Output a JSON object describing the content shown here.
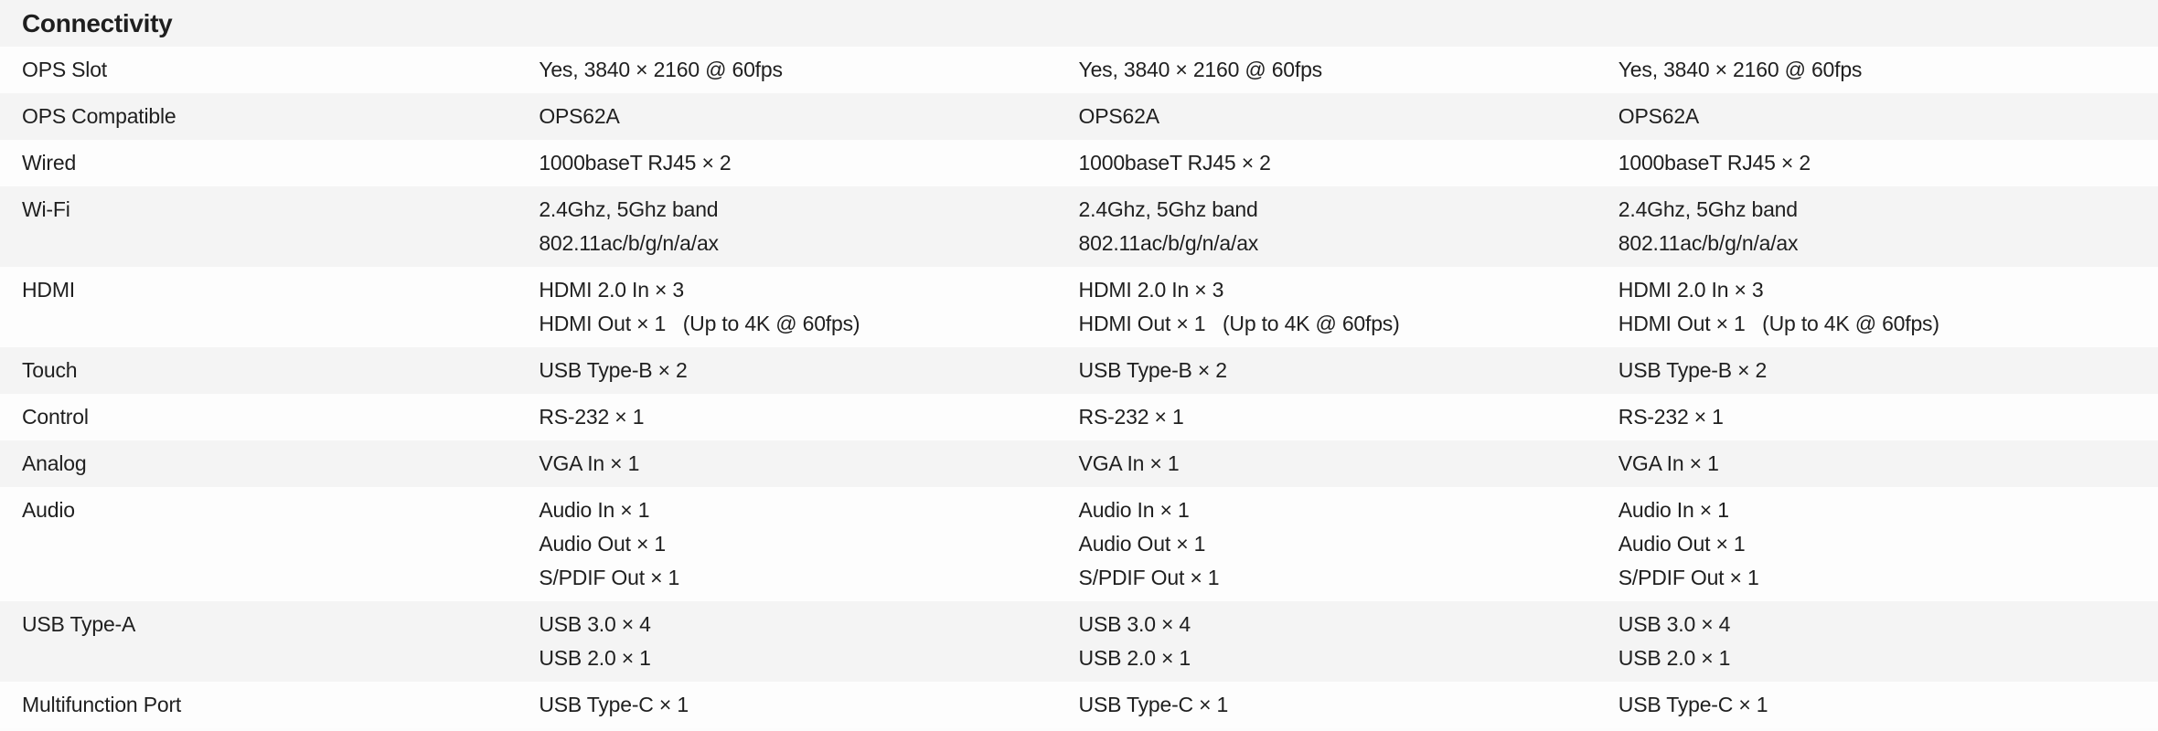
{
  "section_title": "Connectivity",
  "rows": [
    {
      "label": "OPS Slot",
      "values": [
        [
          "Yes, 3840 × 2160 @ 60fps"
        ],
        [
          "Yes, 3840 × 2160 @ 60fps"
        ],
        [
          "Yes, 3840 × 2160 @ 60fps"
        ]
      ]
    },
    {
      "label": "OPS Compatible",
      "values": [
        [
          "OPS62A"
        ],
        [
          "OPS62A"
        ],
        [
          "OPS62A"
        ]
      ]
    },
    {
      "label": "Wired",
      "values": [
        [
          "1000baseT RJ45 × 2"
        ],
        [
          "1000baseT RJ45 × 2"
        ],
        [
          "1000baseT RJ45 × 2"
        ]
      ]
    },
    {
      "label": "Wi-Fi",
      "values": [
        [
          "2.4Ghz, 5Ghz band",
          "802.11ac/b/g/n/a/ax"
        ],
        [
          "2.4Ghz, 5Ghz band",
          "802.11ac/b/g/n/a/ax"
        ],
        [
          "2.4Ghz, 5Ghz band",
          "802.11ac/b/g/n/a/ax"
        ]
      ]
    },
    {
      "label": "HDMI",
      "values": [
        [
          "HDMI 2.0 In × 3",
          "HDMI Out × 1   (Up to 4K @ 60fps)"
        ],
        [
          "HDMI 2.0 In × 3",
          "HDMI Out × 1   (Up to 4K @ 60fps)"
        ],
        [
          "HDMI 2.0 In × 3",
          "HDMI Out × 1   (Up to 4K @ 60fps)"
        ]
      ]
    },
    {
      "label": "Touch",
      "values": [
        [
          "USB Type-B × 2"
        ],
        [
          "USB Type-B × 2"
        ],
        [
          "USB Type-B × 2"
        ]
      ]
    },
    {
      "label": "Control",
      "values": [
        [
          "RS-232 × 1"
        ],
        [
          "RS-232 × 1"
        ],
        [
          "RS-232 × 1"
        ]
      ]
    },
    {
      "label": "Analog",
      "values": [
        [
          "VGA In × 1"
        ],
        [
          "VGA In × 1"
        ],
        [
          "VGA In × 1"
        ]
      ]
    },
    {
      "label": "Audio",
      "values": [
        [
          "Audio In × 1",
          "Audio Out × 1",
          "S/PDIF Out × 1"
        ],
        [
          "Audio In × 1",
          "Audio Out × 1",
          "S/PDIF Out × 1"
        ],
        [
          "Audio In × 1",
          "Audio Out × 1",
          "S/PDIF Out × 1"
        ]
      ]
    },
    {
      "label": "USB Type-A",
      "values": [
        [
          "USB 3.0 × 4",
          "USB 2.0 × 1"
        ],
        [
          "USB 3.0 × 4",
          "USB 2.0 × 1"
        ],
        [
          "USB 3.0 × 4",
          "USB 2.0 × 1"
        ]
      ]
    },
    {
      "label": "Multifunction Port",
      "values": [
        [
          "USB Type-C × 1"
        ],
        [
          "USB Type-C × 1"
        ],
        [
          "USB Type-C × 1"
        ]
      ]
    }
  ]
}
